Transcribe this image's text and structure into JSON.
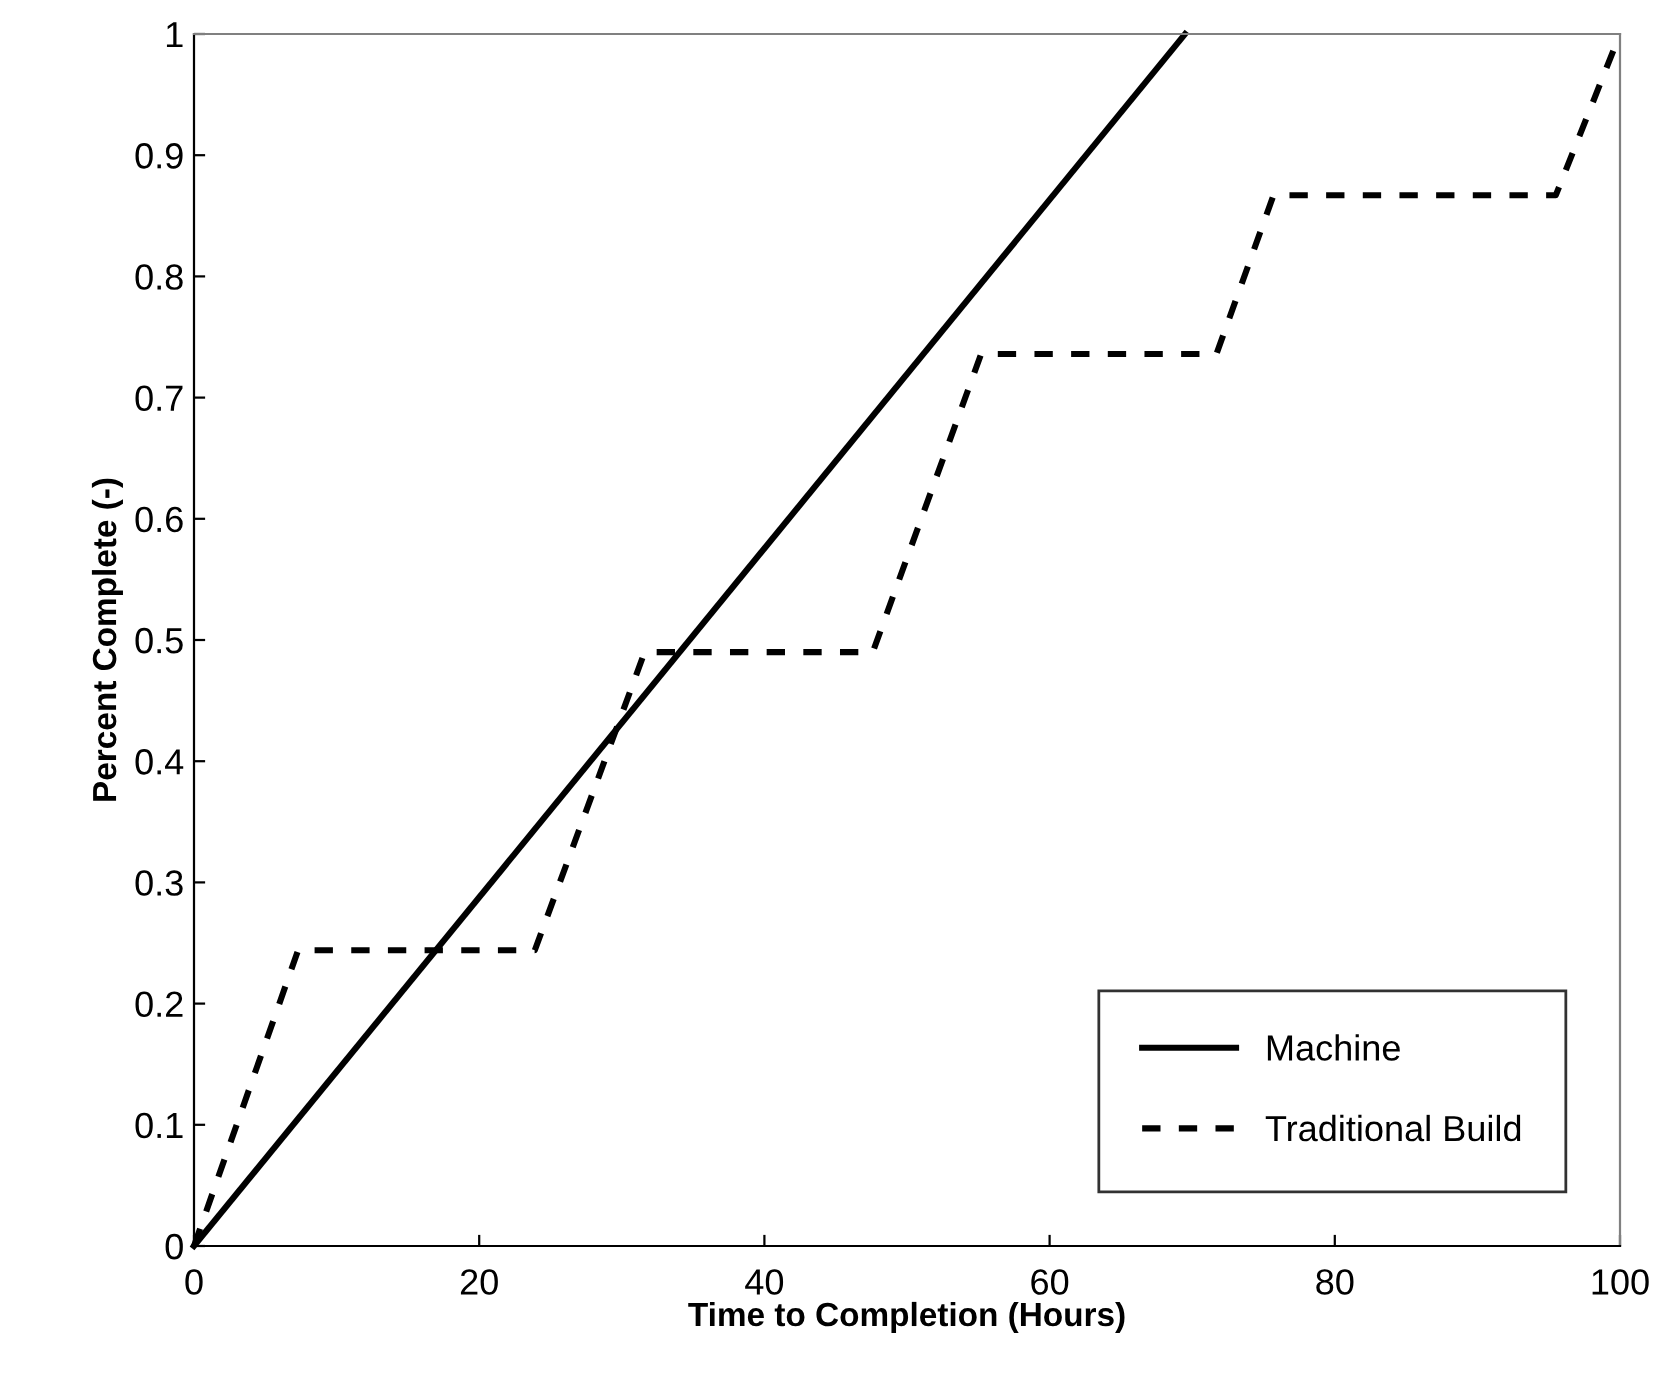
{
  "chart_data": {
    "type": "line",
    "xlabel": "Time to Completion (Hours)",
    "ylabel": "Percent Complete (-)",
    "series": [
      {
        "name": "Machine",
        "color": "#000000",
        "line_style": "solid",
        "x": [
          0,
          69.5
        ],
        "values": [
          0,
          1
        ]
      },
      {
        "name": "Traditional Build",
        "color": "#000000",
        "line_style": "dotted",
        "x": [
          0,
          7.3,
          23.9,
          31.6,
          47.6,
          55.2,
          71.7,
          75.7,
          95.5,
          100
        ],
        "values": [
          0,
          0.244,
          0.244,
          0.49,
          0.49,
          0.736,
          0.736,
          0.867,
          0.867,
          1
        ]
      }
    ],
    "xlim": [
      0,
      100
    ],
    "xticks": [
      0,
      20,
      40,
      60,
      80,
      100
    ],
    "ylim": [
      0,
      1
    ],
    "yticks": [
      0,
      0.1,
      0.2,
      0.3,
      0.4,
      0.5,
      0.6,
      0.7,
      0.8,
      0.9,
      1
    ],
    "grid": false,
    "legend": "bottom right",
    "marker": "none"
  }
}
